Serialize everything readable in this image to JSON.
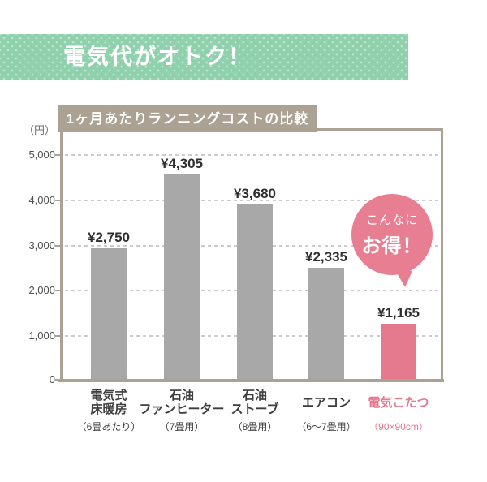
{
  "banner": {
    "label": "電気代がオトク！"
  },
  "chart": {
    "title": "1ヶ月あたりランニングコストの比較",
    "unit_label": "（円）"
  },
  "bubble": {
    "line1": "こんなに",
    "line2": "お得！"
  },
  "colors": {
    "banner_green": "#8ed1ac",
    "frame_taupe": "#aba293",
    "bar_gray": "#a8a8a8",
    "accent_pink": "#e5798d",
    "grid_gray": "#cccccc"
  },
  "chart_data": {
    "type": "bar",
    "title": "1ヶ月あたりランニングコストの比較",
    "ylabel": "（円）",
    "ylim": [
      0,
      5000
    ],
    "grid": true,
    "y_ticks": [
      0,
      1000,
      2000,
      3000,
      4000,
      5000
    ],
    "y_tick_labels": [
      "0",
      "1,000",
      "2,000",
      "3,000",
      "4,000",
      "5,000"
    ],
    "categories": [
      "電気式床暖房",
      "石油ファンヒーター",
      "石油ストーブ",
      "エアコン",
      "電気こたつ"
    ],
    "category_lines": [
      [
        "電気式",
        "床暖房"
      ],
      [
        "石油",
        "ファンヒーター"
      ],
      [
        "石油",
        "ストーブ"
      ],
      [
        "エアコン"
      ],
      [
        "電気こたつ"
      ]
    ],
    "category_notes": [
      "（6畳あたり）",
      "（7畳用）",
      "（8畳用）",
      "（6～7畳用）",
      "（90×90cm）"
    ],
    "values": [
      2750,
      4305,
      3680,
      2335,
      1165
    ],
    "value_labels": [
      "¥2,750",
      "¥4,305",
      "¥3,680",
      "¥2,335",
      "¥1,165"
    ],
    "highlight_index": 4,
    "bar_color": "#a8a8a8",
    "highlight_color": "#e5798d",
    "annotation": "こんなに お得！",
    "legend": false
  }
}
